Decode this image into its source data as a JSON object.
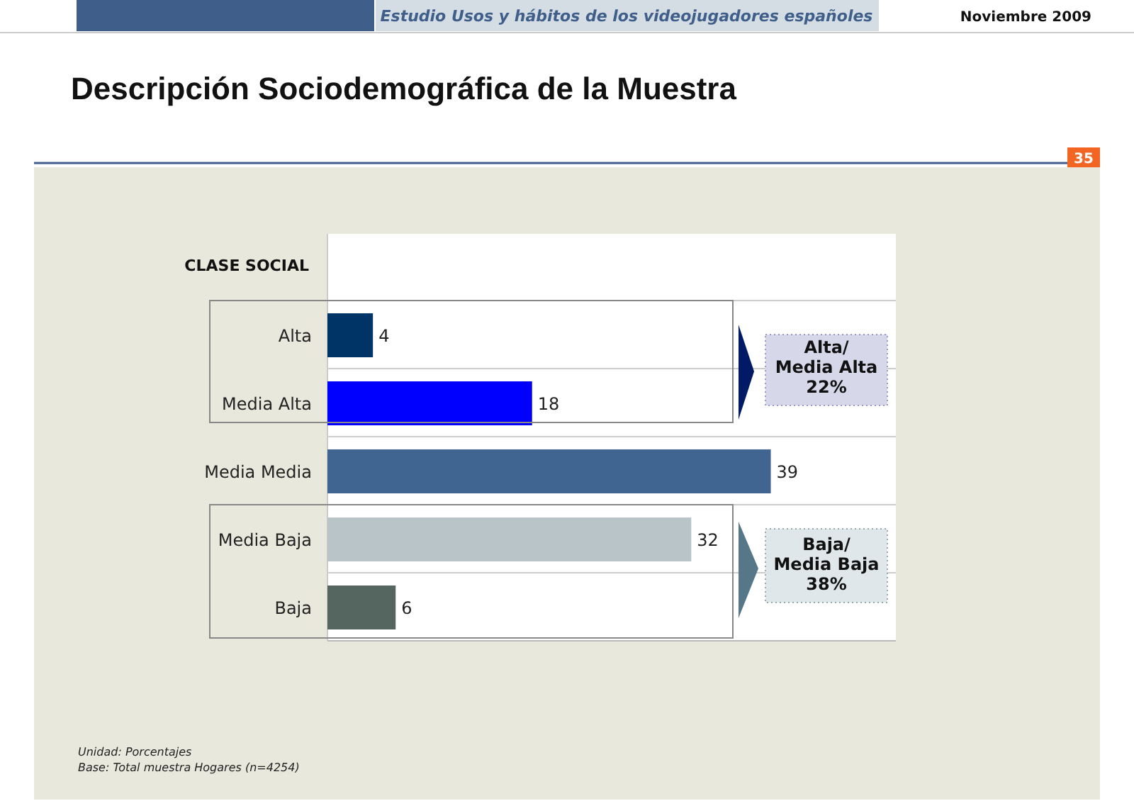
{
  "chart_data": {
    "type": "bar",
    "orientation": "horizontal",
    "title": "Descripción Sociodemográfica de la Muestra",
    "subtitle": "Estudio Usos y hábitos de los videojugadores españoles",
    "ylabel": "CLASE SOCIAL",
    "categories": [
      "Alta",
      "Media Alta",
      "Media Media",
      "Media Baja",
      "Baja"
    ],
    "values": [
      4,
      18,
      39,
      32,
      6
    ],
    "colors": [
      "#003366",
      "#0000ff",
      "#416591",
      "#b8c4c8",
      "#556660"
    ],
    "xlim": [
      0,
      50
    ],
    "data_labels": true,
    "grid": "y",
    "tick_labels": "y",
    "annotations": [
      "Noviembre 2009",
      "35",
      "Alta/\nMedia Alta\n22%",
      "Baja/\nMedia Baja\n38%",
      "Unidad: Porcentajes",
      "Base: Total muestra Hogares (n=4254)"
    ]
  }
}
